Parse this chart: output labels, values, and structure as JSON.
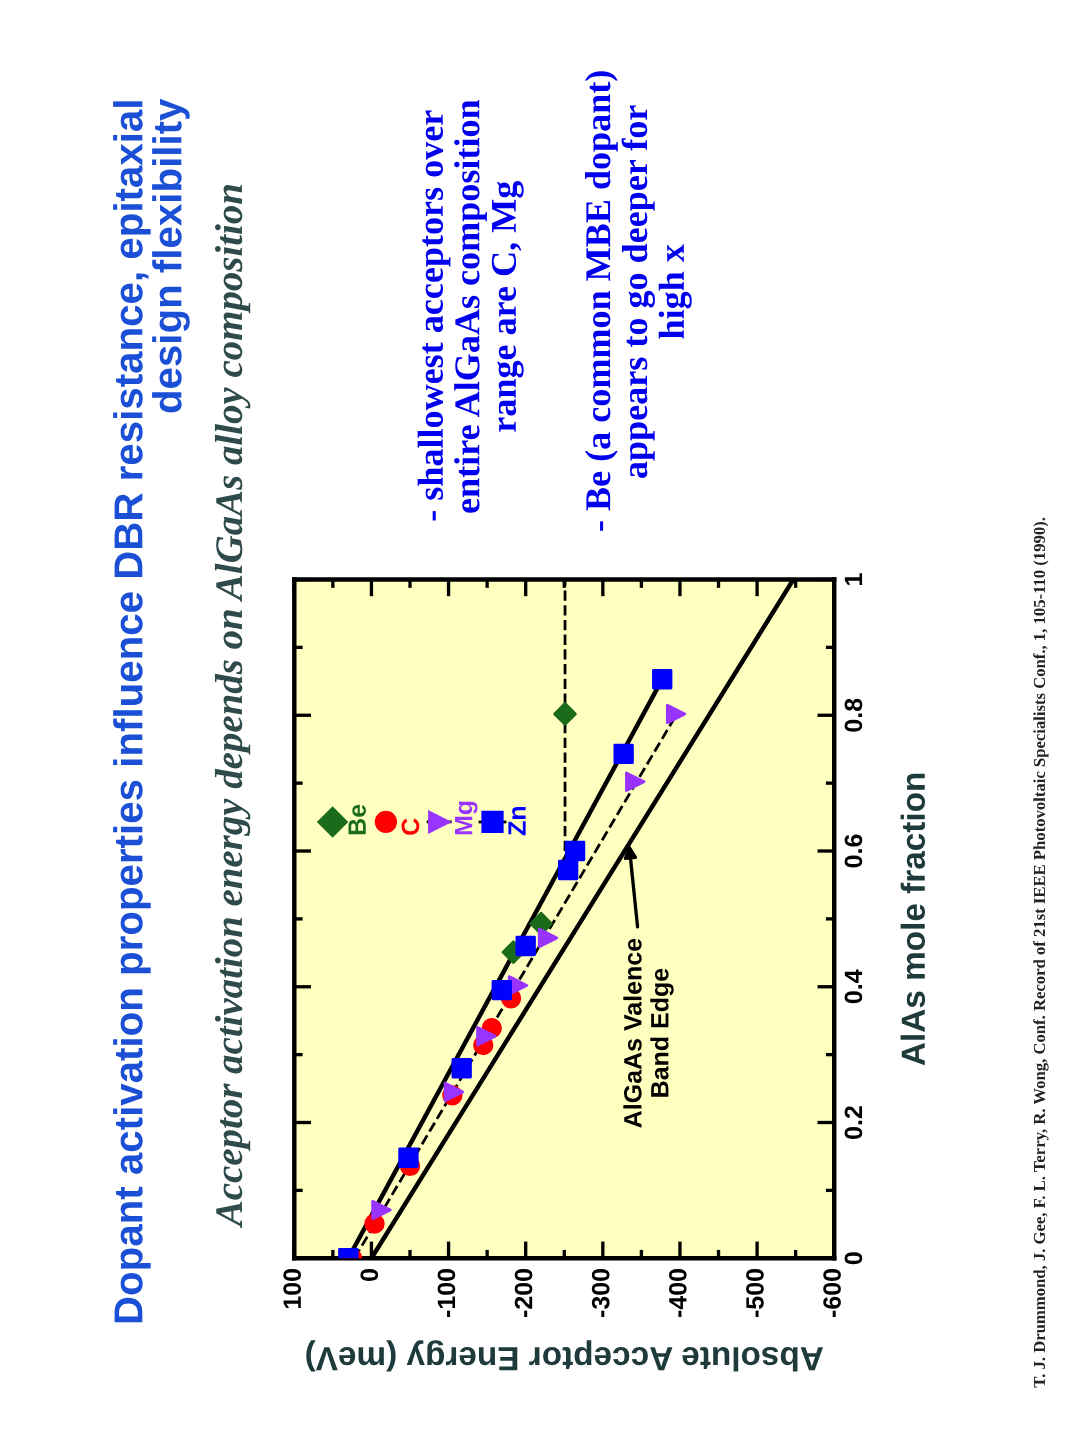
{
  "chart_data": {
    "type": "scatter",
    "title": "Dopant activation properties influence DBR resistance, epitaxial\ndesign flexibility",
    "subtitle": "Acceptor activation energy depends on AlGaAs alloy composition",
    "xlabel": "Absolute Acceptor Energy (meV)",
    "ylabel": "AlAs mole fraction",
    "xlim": [
      100,
      -600
    ],
    "ylim": [
      0,
      1
    ],
    "xticks": [
      100,
      0,
      -100,
      -200,
      -300,
      -400,
      -500,
      -600
    ],
    "yticks": [
      0,
      0.2,
      0.4,
      0.6,
      0.8,
      1
    ],
    "grid": false,
    "legend": "top left",
    "series": [
      {
        "name": "Be",
        "type": "scatter",
        "color": "#1a6b1a",
        "marker": "diamond",
        "line_style": "solid",
        "x": [
          -184,
          -220,
          -251
        ],
        "values": [
          0.451,
          0.493,
          0.802
        ]
      },
      {
        "name": "C",
        "type": "scatter",
        "color": "#ff0000",
        "marker": "circle",
        "x": [
          25,
          -4,
          -50,
          -105,
          -145,
          -156,
          -181
        ],
        "values": [
          0,
          0.051,
          0.136,
          0.24,
          0.314,
          0.339,
          0.383
        ]
      },
      {
        "name": "Mg",
        "type": "scatter",
        "color": "#9933ff",
        "marker": "triangle",
        "line_style": "dashed",
        "x": [
          -13,
          -107,
          -149,
          -190,
          -229,
          -342,
          -395
        ],
        "values": [
          0.071,
          0.245,
          0.327,
          0.402,
          0.472,
          0.702,
          0.802
        ]
      },
      {
        "name": "Zn",
        "type": "scatter",
        "color": "#0000ff",
        "marker": "square",
        "line_style": "solid",
        "x": [
          30,
          -48,
          -117,
          -169,
          -200,
          -255,
          -264,
          -327,
          -377
        ],
        "values": [
          0,
          0.148,
          0.28,
          0.395,
          0.46,
          0.572,
          0.6,
          0.743,
          0.853
        ]
      },
      {
        "type": "line",
        "color": "#000000",
        "line_style": "solid",
        "x": [
          30,
          -377
        ],
        "values": [
          0,
          0.853
        ]
      },
      {
        "type": "line",
        "color": "#000000",
        "line_style": "dashed",
        "x": [
          22,
          -395
        ],
        "values": [
          0,
          0.8
        ]
      },
      {
        "type": "line",
        "color": "#000000",
        "line_style": "dashed",
        "x": [
          -251,
          -251
        ],
        "values": [
          0.6,
          1
        ]
      },
      {
        "type": "line",
        "color": "#000000",
        "line_style": "solid",
        "x": [
          0,
          -547
        ],
        "values": [
          0,
          1
        ]
      }
    ],
    "annotations": [
      {
        "text": "AlGaAs Valence\nBand Edge",
        "x": -334,
        "y": 0.61
      },
      "- shallowest acceptors over\n  entire AlGaAs composition\n  range are C, Mg",
      "- Be (a common MBE dopant)\n  appears to go deeper for\n  high x",
      "T. J. Drummond, J. Gee, F. L. Terry, R. Wong, Conf. Record of 21st IEEE Photovoltaic Specialists Conf., 1, 105-110 (1990)."
    ]
  }
}
